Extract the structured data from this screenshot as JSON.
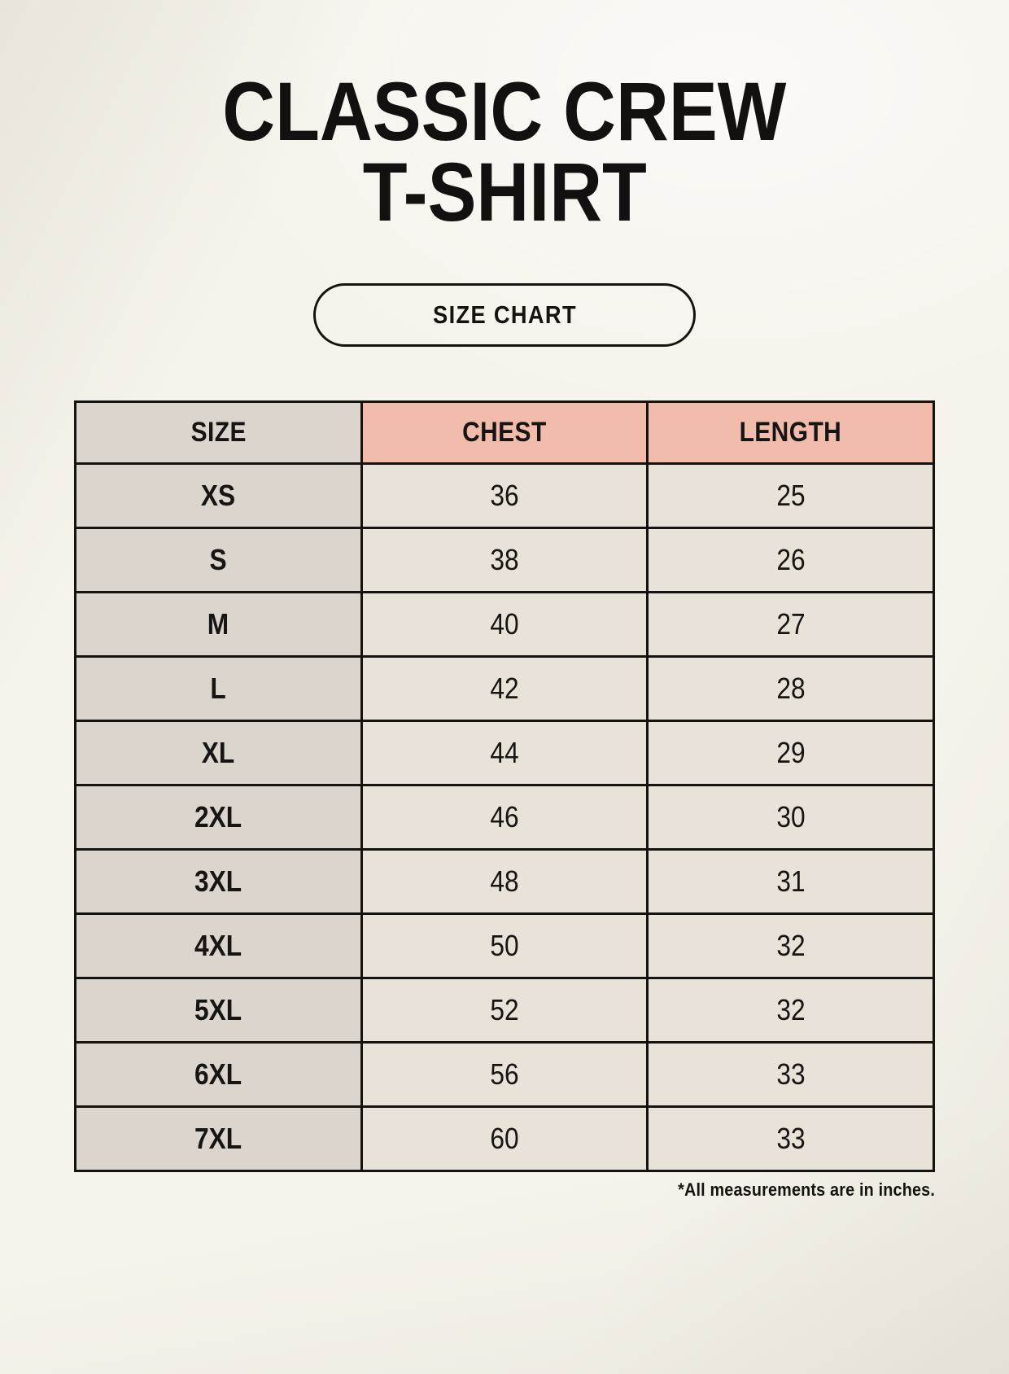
{
  "page": {
    "title_line1": "CLASSIC CREW",
    "title_line2": "T-SHIRT",
    "button_label": "SIZE CHART",
    "footnote": "*All measurements are in inches."
  },
  "chart_data": {
    "type": "table",
    "title": "CLASSIC CREW T-SHIRT",
    "subtitle": "SIZE CHART",
    "columns": [
      "SIZE",
      "CHEST",
      "LENGTH"
    ],
    "rows": [
      [
        "XS",
        36,
        25
      ],
      [
        "S",
        38,
        26
      ],
      [
        "M",
        40,
        27
      ],
      [
        "L",
        42,
        28
      ],
      [
        "XL",
        44,
        29
      ],
      [
        "2XL",
        46,
        30
      ],
      [
        "3XL",
        48,
        31
      ],
      [
        "4XL",
        50,
        32
      ],
      [
        "5XL",
        52,
        32
      ],
      [
        "6XL",
        56,
        33
      ],
      [
        "7XL",
        60,
        33
      ]
    ],
    "note": "*All measurements are in inches.",
    "units": "inches"
  },
  "colors": {
    "background": "#f6f3ec",
    "size_column": "#dcd5ce",
    "header_accent": "#f1bcab",
    "data_cell": "#e9e2d8",
    "border": "#14130f",
    "text": "#161513"
  }
}
